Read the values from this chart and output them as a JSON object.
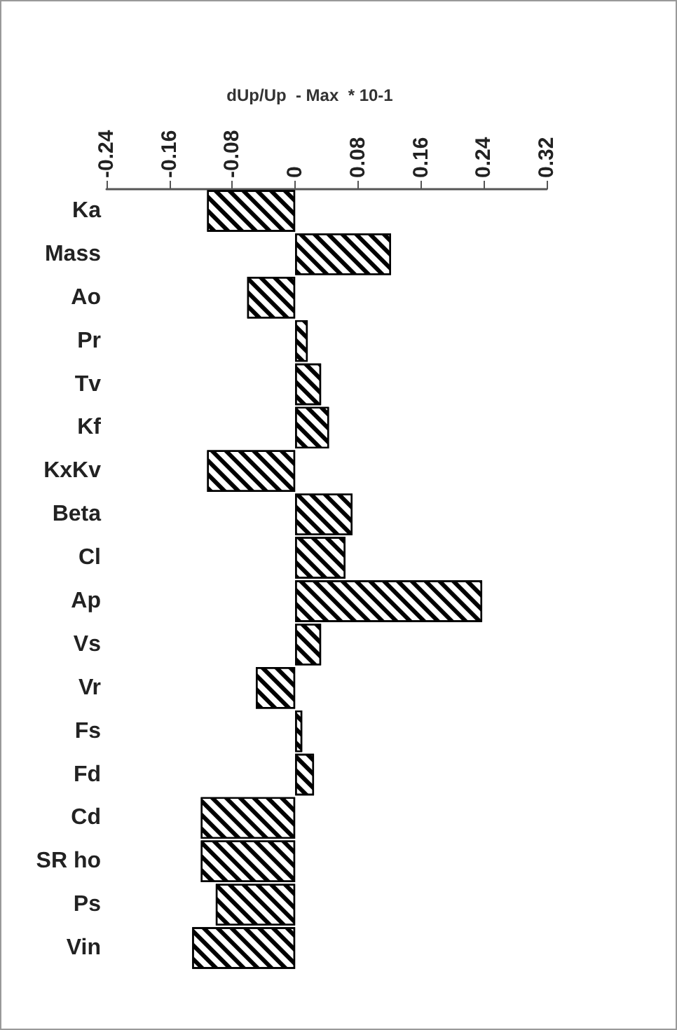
{
  "chart_data": {
    "type": "bar",
    "orientation": "horizontal",
    "title": "dUp/Up  - Max  * 10-1",
    "categories": [
      "Ka",
      "Mass",
      "Ao",
      "Pr",
      "Tv",
      "Kf",
      "KxKv",
      "Beta",
      "Cl",
      "Ap",
      "Vs",
      "Vr",
      "Fs",
      "Fd",
      "Cd",
      "SR ho",
      "Ps",
      "Vin"
    ],
    "values": [
      -0.112,
      0.122,
      -0.061,
      0.016,
      0.033,
      0.043,
      -0.112,
      0.073,
      0.064,
      0.238,
      0.033,
      -0.05,
      0.009,
      0.024,
      -0.12,
      -0.12,
      -0.101,
      -0.131
    ],
    "color": "#000000",
    "xlim": [
      -0.24,
      0.32
    ],
    "xticks": [
      -0.24,
      -0.16,
      -0.08,
      0,
      0.08,
      0.16,
      0.24,
      0.32
    ],
    "grid": false
  }
}
